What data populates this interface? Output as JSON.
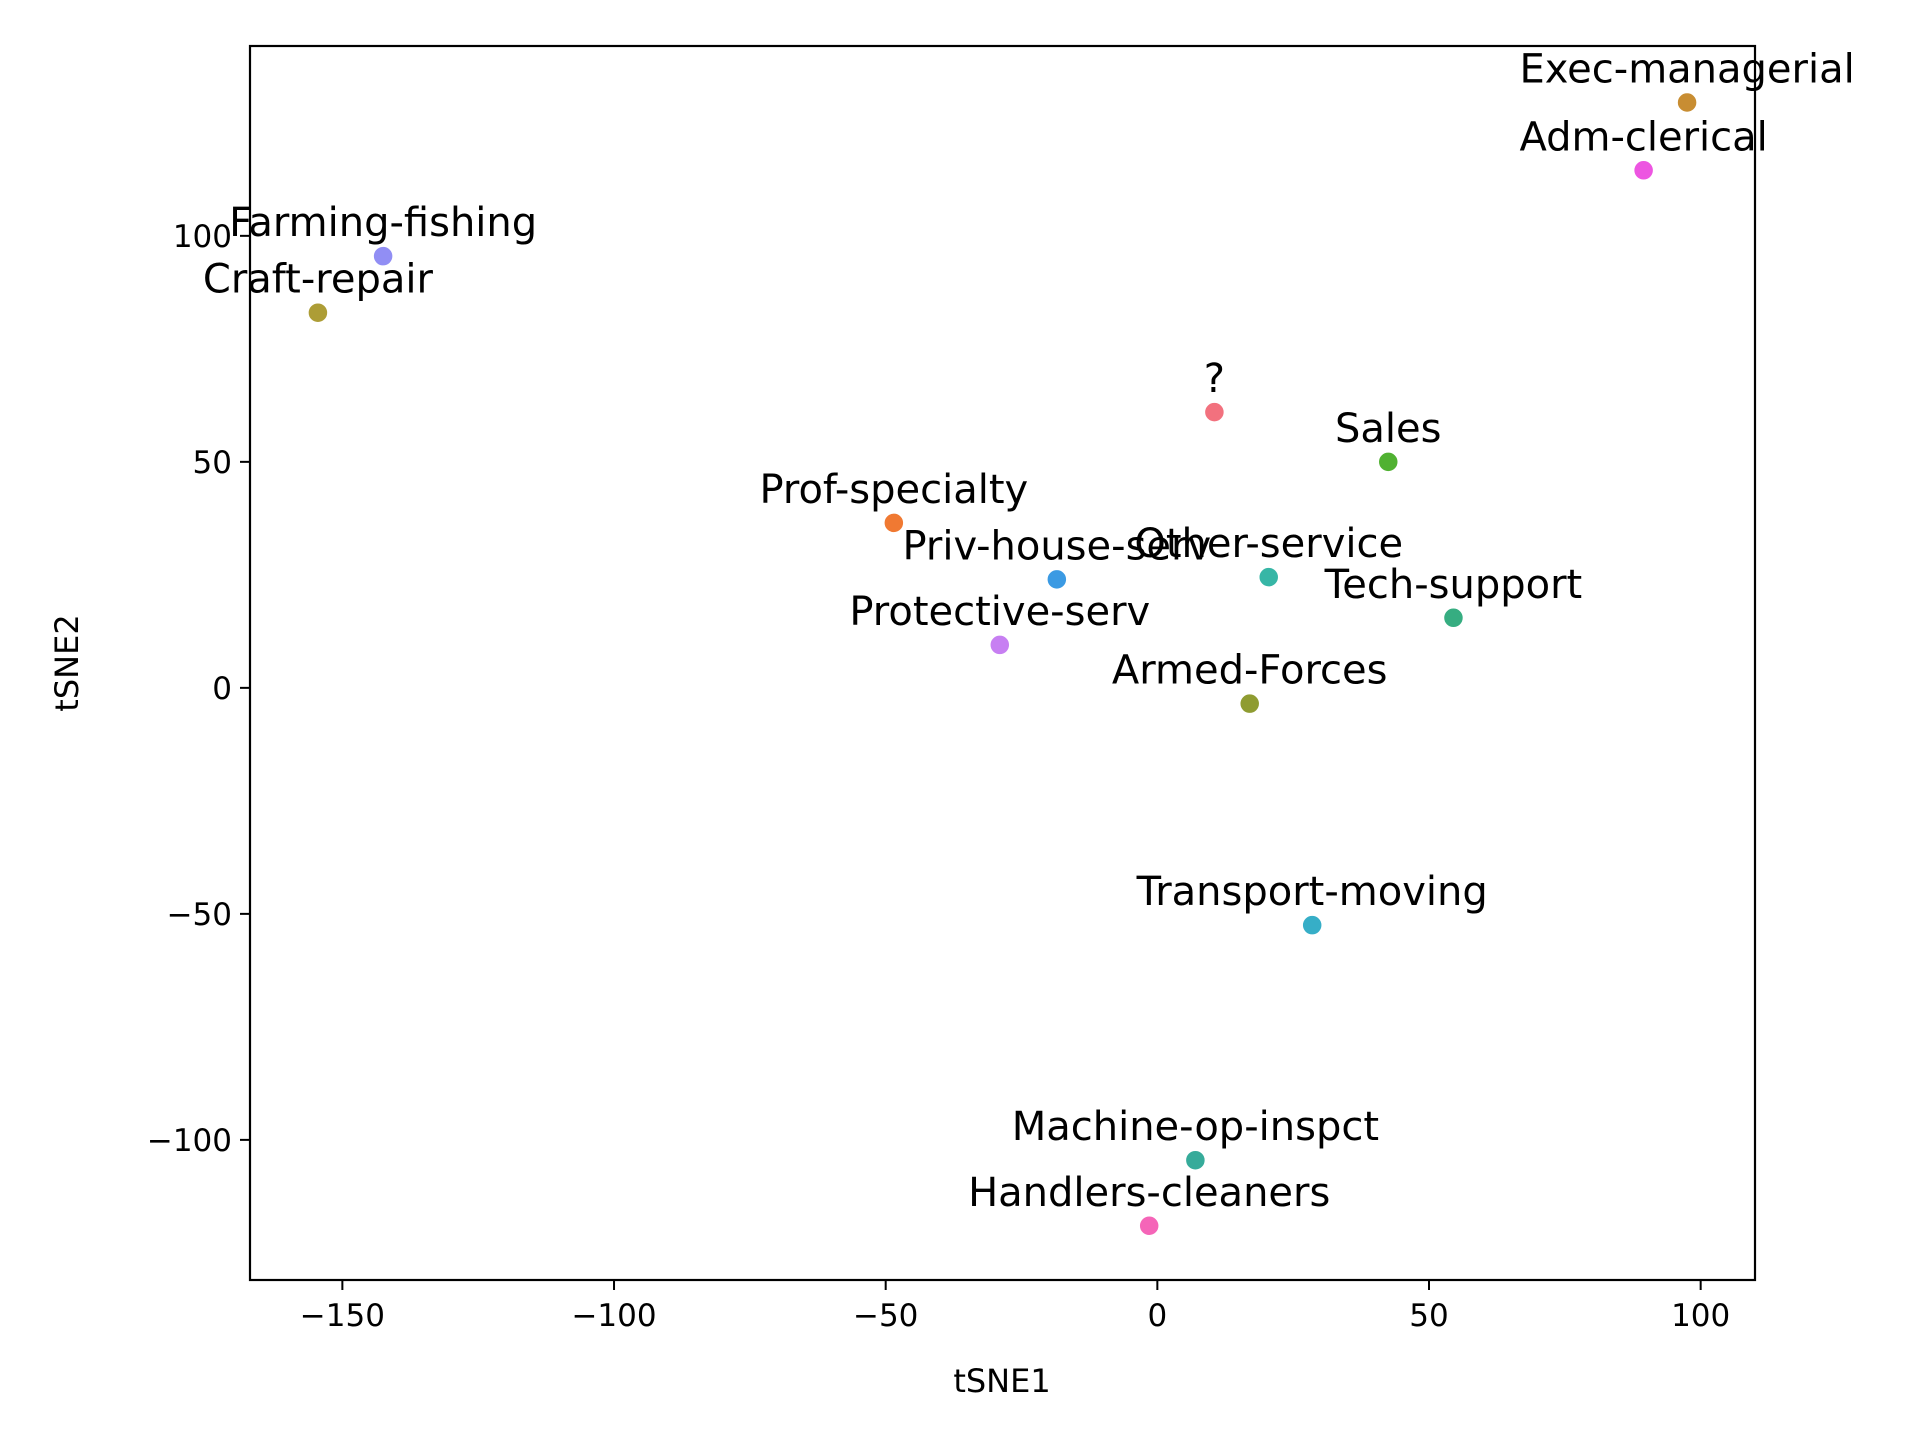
{
  "chart_data": {
    "type": "scatter",
    "title": "",
    "xlabel": "tSNE1",
    "ylabel": "tSNE2",
    "xlim": [
      -167,
      110
    ],
    "ylim": [
      -131,
      142
    ],
    "xticks": [
      -150,
      -100,
      -50,
      0,
      50,
      100
    ],
    "yticks": [
      -100,
      -50,
      0,
      50,
      100
    ],
    "xtick_labels": [
      "−150",
      "−100",
      "−50",
      "0",
      "50",
      "100"
    ],
    "ytick_labels": [
      "−100",
      "−50",
      "0",
      "50",
      "100"
    ],
    "grid": false,
    "legend": "none",
    "points": [
      {
        "label": "Exec-managerial",
        "x": 97.5,
        "y": 129.5,
        "color": "#c88d32"
      },
      {
        "label": "Adm-clerical",
        "x": 89.5,
        "y": 114.5,
        "color": "#ed55e1"
      },
      {
        "label": "Farming-fishing",
        "x": -142.5,
        "y": 95.5,
        "color": "#918ef4"
      },
      {
        "label": "Craft-repair",
        "x": -154.5,
        "y": 83.0,
        "color": "#ad9d36"
      },
      {
        "label": "?",
        "x": 10.5,
        "y": 61.0,
        "color": "#f2717e"
      },
      {
        "label": "Sales",
        "x": 42.5,
        "y": 50.0,
        "color": "#50b131"
      },
      {
        "label": "Prof-specialty",
        "x": -48.5,
        "y": 36.5,
        "color": "#f07932"
      },
      {
        "label": "Priv-house-serv",
        "x": -18.5,
        "y": 24.0,
        "color": "#3b9ae3"
      },
      {
        "label": "Other-service",
        "x": 20.5,
        "y": 24.5,
        "color": "#37b6a6"
      },
      {
        "label": "Tech-support",
        "x": 54.5,
        "y": 15.5,
        "color": "#36ad81"
      },
      {
        "label": "Protective-serv",
        "x": -29.0,
        "y": 9.5,
        "color": "#c77ff2"
      },
      {
        "label": "Armed-Forces",
        "x": 17.0,
        "y": -3.5,
        "color": "#8f9c31"
      },
      {
        "label": "Transport-moving",
        "x": 28.5,
        "y": -52.5,
        "color": "#36aec7"
      },
      {
        "label": "Machine-op-inspct",
        "x": 7.0,
        "y": -104.5,
        "color": "#36ab9a"
      },
      {
        "label": "Handlers-cleaners",
        "x": -1.5,
        "y": -119.0,
        "color": "#f565b8"
      }
    ]
  }
}
